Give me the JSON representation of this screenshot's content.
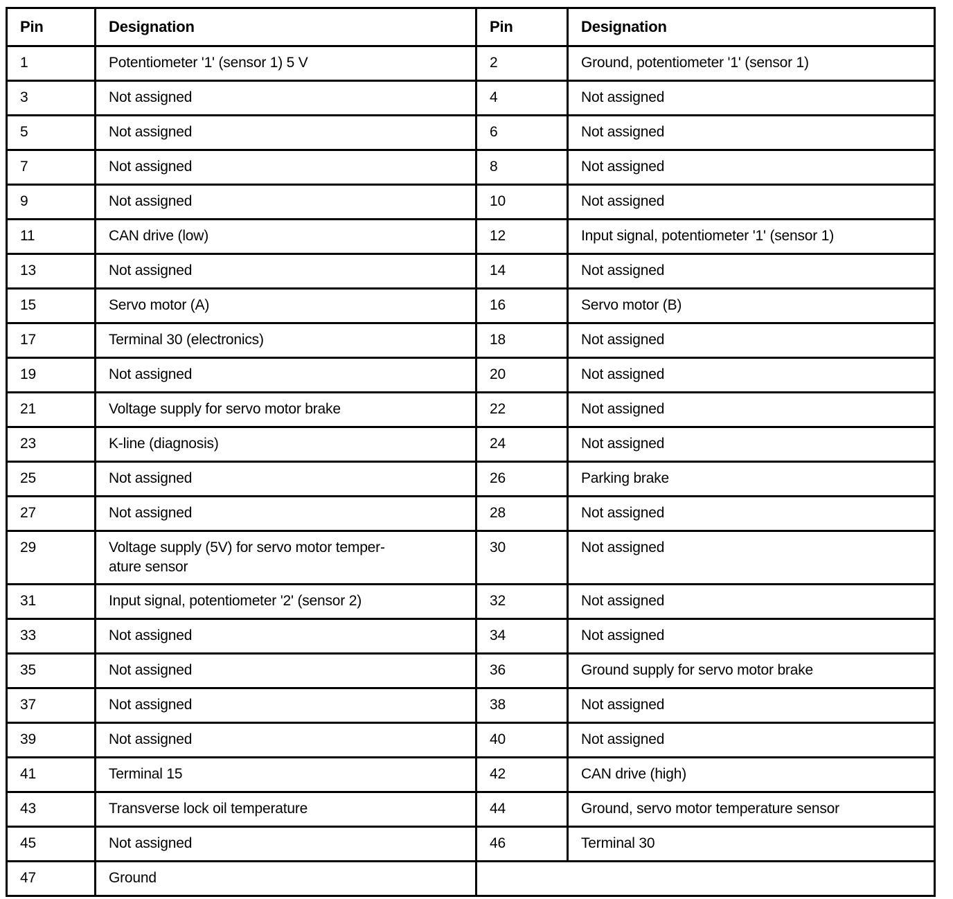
{
  "table": {
    "headers": {
      "pin": "Pin",
      "designation": "Designation"
    },
    "rows": [
      {
        "left": {
          "pin": "1",
          "designation": "Potentiometer '1' (sensor 1) 5 V"
        },
        "right": {
          "pin": "2",
          "designation": "Ground, potentiometer '1' (sensor 1)"
        }
      },
      {
        "left": {
          "pin": "3",
          "designation": "Not assigned"
        },
        "right": {
          "pin": "4",
          "designation": "Not assigned"
        }
      },
      {
        "left": {
          "pin": "5",
          "designation": "Not assigned"
        },
        "right": {
          "pin": "6",
          "designation": "Not assigned"
        }
      },
      {
        "left": {
          "pin": "7",
          "designation": "Not assigned"
        },
        "right": {
          "pin": "8",
          "designation": "Not assigned"
        }
      },
      {
        "left": {
          "pin": "9",
          "designation": "Not assigned"
        },
        "right": {
          "pin": "10",
          "designation": "Not assigned"
        }
      },
      {
        "left": {
          "pin": "11",
          "designation": "CAN drive (low)"
        },
        "right": {
          "pin": "12",
          "designation": "Input signal, potentiometer '1' (sensor 1)"
        }
      },
      {
        "left": {
          "pin": "13",
          "designation": "Not assigned"
        },
        "right": {
          "pin": "14",
          "designation": "Not assigned"
        }
      },
      {
        "left": {
          "pin": "15",
          "designation": "Servo motor (A)"
        },
        "right": {
          "pin": "16",
          "designation": "Servo motor (B)"
        }
      },
      {
        "left": {
          "pin": "17",
          "designation": "Terminal 30 (electronics)"
        },
        "right": {
          "pin": "18",
          "designation": "Not assigned"
        }
      },
      {
        "left": {
          "pin": "19",
          "designation": "Not assigned"
        },
        "right": {
          "pin": "20",
          "designation": "Not assigned"
        }
      },
      {
        "left": {
          "pin": "21",
          "designation": "Voltage supply for servo motor brake"
        },
        "right": {
          "pin": "22",
          "designation": "Not assigned"
        }
      },
      {
        "left": {
          "pin": "23",
          "designation": "K-line (diagnosis)"
        },
        "right": {
          "pin": "24",
          "designation": "Not assigned"
        }
      },
      {
        "left": {
          "pin": "25",
          "designation": "Not assigned"
        },
        "right": {
          "pin": "26",
          "designation": "Parking brake"
        }
      },
      {
        "left": {
          "pin": "27",
          "designation": "Not assigned"
        },
        "right": {
          "pin": "28",
          "designation": "Not assigned"
        }
      },
      {
        "left": {
          "pin": "29",
          "designation": "Voltage supply (5V) for servo motor temper-\nature sensor"
        },
        "right": {
          "pin": "30",
          "designation": "Not assigned"
        }
      },
      {
        "left": {
          "pin": "31",
          "designation": "Input signal, potentiometer '2' (sensor 2)"
        },
        "right": {
          "pin": "32",
          "designation": "Not assigned"
        }
      },
      {
        "left": {
          "pin": "33",
          "designation": "Not assigned"
        },
        "right": {
          "pin": "34",
          "designation": "Not assigned"
        }
      },
      {
        "left": {
          "pin": "35",
          "designation": "Not assigned"
        },
        "right": {
          "pin": "36",
          "designation": "Ground supply for servo motor brake"
        }
      },
      {
        "left": {
          "pin": "37",
          "designation": "Not assigned"
        },
        "right": {
          "pin": "38",
          "designation": "Not assigned"
        }
      },
      {
        "left": {
          "pin": "39",
          "designation": "Not assigned"
        },
        "right": {
          "pin": "40",
          "designation": "Not assigned"
        }
      },
      {
        "left": {
          "pin": "41",
          "designation": "Terminal 15"
        },
        "right": {
          "pin": "42",
          "designation": "CAN drive (high)"
        }
      },
      {
        "left": {
          "pin": "43",
          "designation": "Transverse lock oil temperature"
        },
        "right": {
          "pin": "44",
          "designation": "Ground, servo motor temperature sensor"
        }
      },
      {
        "left": {
          "pin": "45",
          "designation": "Not assigned"
        },
        "right": {
          "pin": "46",
          "designation": "Terminal 30"
        }
      },
      {
        "left": {
          "pin": "47",
          "designation": "Ground"
        },
        "right": null
      }
    ]
  }
}
